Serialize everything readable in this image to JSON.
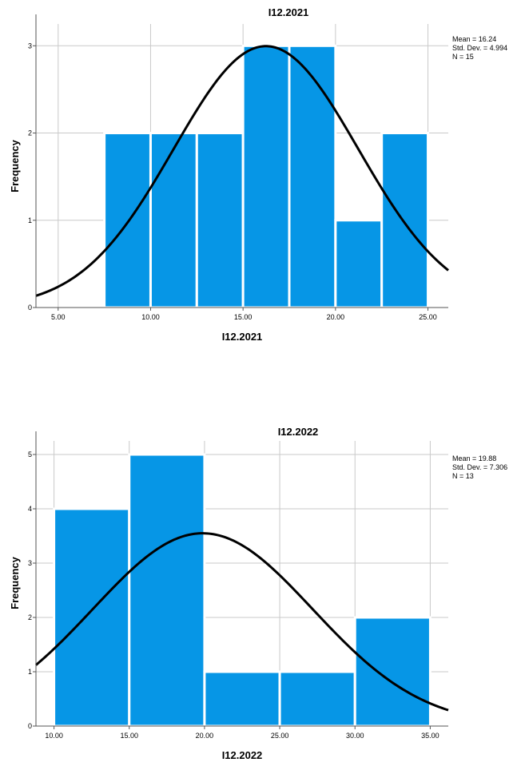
{
  "chart_data": [
    {
      "type": "histogram",
      "title": "I12.2021",
      "xlabel": "I12.2021",
      "ylabel": "Frequency",
      "xlim": [
        3.8,
        26.1
      ],
      "ylim": [
        0,
        3.25
      ],
      "xticks": [
        5,
        10,
        15,
        20,
        25
      ],
      "xtick_labels": [
        "5.00",
        "10.00",
        "15.00",
        "20.00",
        "25.00"
      ],
      "yticks": [
        0,
        1,
        2,
        3
      ],
      "ytick_labels": [
        "0",
        "1",
        "2",
        "3"
      ],
      "bins": [
        {
          "start": 7.5,
          "end": 10.0,
          "count": 2
        },
        {
          "start": 10.0,
          "end": 12.5,
          "count": 2
        },
        {
          "start": 12.5,
          "end": 15.0,
          "count": 2
        },
        {
          "start": 15.0,
          "end": 17.5,
          "count": 3
        },
        {
          "start": 17.5,
          "end": 20.0,
          "count": 3
        },
        {
          "start": 20.0,
          "end": 22.5,
          "count": 1
        },
        {
          "start": 22.5,
          "end": 25.0,
          "count": 2
        }
      ],
      "normal_curve": {
        "mean": 16.24,
        "std_dev": 4.994,
        "n": 15,
        "bin_width": 2.5
      },
      "stats_text": [
        "Mean = 16.24",
        "Std. Dev. = 4.994",
        "N = 15"
      ],
      "bar_color": "#0696e6",
      "curve_color": "#000000",
      "grid": true
    },
    {
      "type": "histogram",
      "title": "I12.2022",
      "xlabel": "I12.2022",
      "ylabel": "Frequency",
      "xlim": [
        8.8,
        36.2
      ],
      "ylim": [
        0,
        5.25
      ],
      "xticks": [
        10,
        15,
        20,
        25,
        30,
        35
      ],
      "xtick_labels": [
        "10.00",
        "15.00",
        "20.00",
        "25.00",
        "30.00",
        "35.00"
      ],
      "yticks": [
        0,
        1,
        2,
        3,
        4,
        5
      ],
      "ytick_labels": [
        "0",
        "1",
        "2",
        "3",
        "4",
        "5"
      ],
      "bins": [
        {
          "start": 10,
          "end": 15,
          "count": 4
        },
        {
          "start": 15,
          "end": 20,
          "count": 5
        },
        {
          "start": 20,
          "end": 25,
          "count": 1
        },
        {
          "start": 25,
          "end": 30,
          "count": 1
        },
        {
          "start": 30,
          "end": 35,
          "count": 2
        }
      ],
      "normal_curve": {
        "mean": 19.88,
        "std_dev": 7.306,
        "n": 13,
        "bin_width": 5
      },
      "stats_text": [
        "Mean = 19.88",
        "Std. Dev. = 7.306",
        "N = 13"
      ],
      "bar_color": "#0696e6",
      "curve_color": "#000000",
      "grid": true
    }
  ]
}
